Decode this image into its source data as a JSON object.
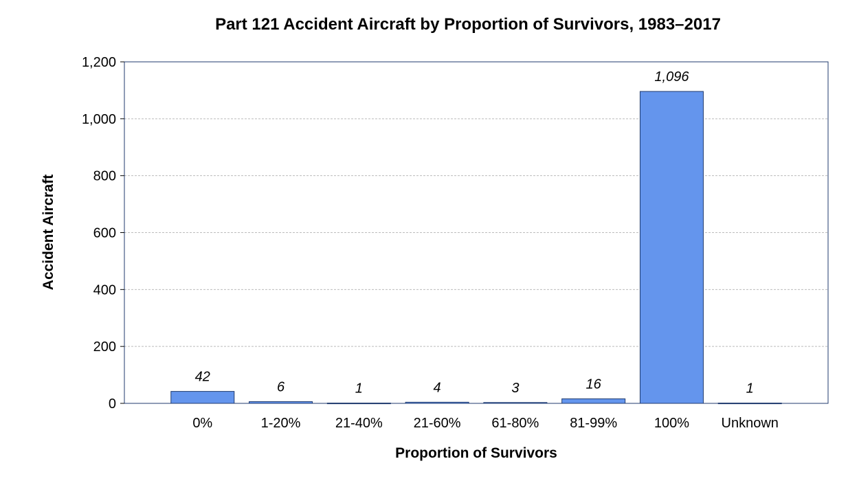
{
  "chart_data": {
    "type": "bar",
    "title": "Part 121 Accident Aircraft by Proportion of Survivors, 1983–2017",
    "xlabel": "Proportion of Survivors",
    "ylabel": "Accident Aircraft",
    "categories": [
      "0%",
      "1-20%",
      "21-40%",
      "21-60%",
      "61-80%",
      "81-99%",
      "100%",
      "Unknown"
    ],
    "values": [
      42,
      6,
      1,
      4,
      3,
      16,
      1096,
      1
    ],
    "data_labels": [
      "42",
      "6",
      "1",
      "4",
      "3",
      "16",
      "1,096",
      "1"
    ],
    "ylim": [
      0,
      1200
    ],
    "yticks": [
      0,
      200,
      400,
      600,
      800,
      1000,
      1200
    ],
    "ytick_labels": [
      "0",
      "200",
      "400",
      "600",
      "800",
      "1,000",
      "1,200"
    ],
    "grid": "horizontal dashed",
    "legend": "none",
    "colors": {
      "bar": "#6495ED",
      "bar_border": "#1F3A6E",
      "axis": "#1F3A6E",
      "grid": "#BBBBBB"
    }
  }
}
